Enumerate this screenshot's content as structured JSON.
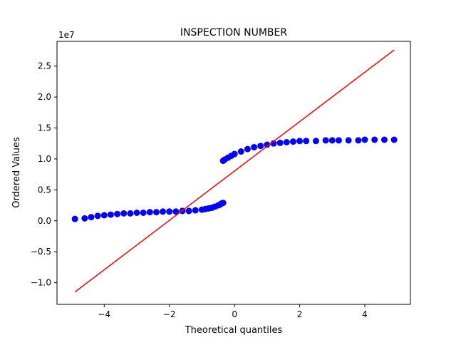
{
  "chart_data": {
    "type": "scatter",
    "title": "INSPECTION NUMBER",
    "xlabel": "Theoretical quantiles",
    "ylabel": "Ordered Values",
    "y_offset_label": "1e7",
    "xlim": [
      -5.45,
      5.4
    ],
    "ylim": [
      -1.35,
      2.9
    ],
    "x_ticks": [
      {
        "value": -4,
        "label": "−4"
      },
      {
        "value": -2,
        "label": "−2"
      },
      {
        "value": 0,
        "label": "0"
      },
      {
        "value": 2,
        "label": "2"
      },
      {
        "value": 4,
        "label": "4"
      }
    ],
    "y_ticks": [
      {
        "value": -1.0,
        "label": "−1.0"
      },
      {
        "value": -0.5,
        "label": "−0.5"
      },
      {
        "value": 0.0,
        "label": "0.0"
      },
      {
        "value": 0.5,
        "label": "0.5"
      },
      {
        "value": 1.0,
        "label": "1.0"
      },
      {
        "value": 1.5,
        "label": "1.5"
      },
      {
        "value": 2.0,
        "label": "2.0"
      },
      {
        "value": 2.5,
        "label": "2.5"
      }
    ],
    "grid": false,
    "legend": "none",
    "series": [
      {
        "kind": "points",
        "color": "#0000ff",
        "x": [
          -4.9,
          -4.6,
          -4.4,
          -4.2,
          -4.0,
          -3.8,
          -3.6,
          -3.4,
          -3.2,
          -3.0,
          -2.8,
          -2.6,
          -2.4,
          -2.2,
          -2.0,
          -1.8,
          -1.6,
          -1.4,
          -1.2,
          -1.0,
          -0.9,
          -0.8,
          -0.7,
          -0.6,
          -0.5,
          -0.45,
          -0.4,
          -0.35,
          -0.35,
          -0.3,
          -0.2,
          -0.1,
          0.0,
          0.2,
          0.4,
          0.6,
          0.8,
          1.0,
          1.2,
          1.4,
          1.6,
          1.8,
          2.0,
          2.2,
          2.5,
          2.8,
          3.0,
          3.2,
          3.5,
          3.8,
          4.0,
          4.3,
          4.6,
          4.9
        ],
        "y": [
          0.03,
          0.04,
          0.06,
          0.08,
          0.09,
          0.1,
          0.11,
          0.12,
          0.12,
          0.13,
          0.13,
          0.14,
          0.14,
          0.15,
          0.15,
          0.15,
          0.16,
          0.16,
          0.17,
          0.18,
          0.19,
          0.2,
          0.21,
          0.23,
          0.25,
          0.26,
          0.28,
          0.29,
          0.97,
          0.99,
          1.02,
          1.05,
          1.08,
          1.12,
          1.16,
          1.19,
          1.21,
          1.23,
          1.25,
          1.26,
          1.27,
          1.28,
          1.29,
          1.29,
          1.29,
          1.3,
          1.3,
          1.3,
          1.3,
          1.3,
          1.31,
          1.31,
          1.31,
          1.31
        ]
      },
      {
        "kind": "line",
        "color": "#ff0000",
        "x": [
          -4.9,
          4.9
        ],
        "y": [
          -1.15,
          2.76
        ]
      }
    ]
  }
}
